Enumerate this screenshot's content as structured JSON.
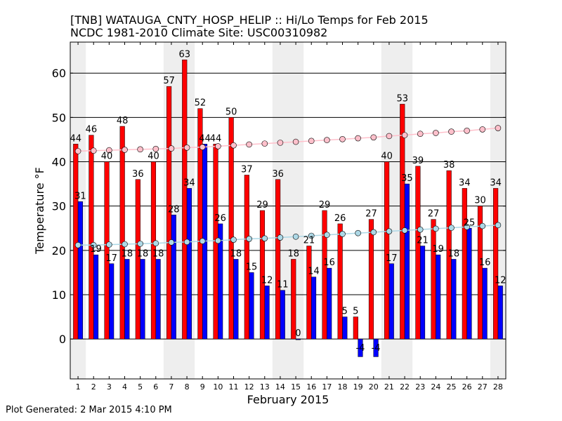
{
  "header": {
    "title_line1": "[TNB] WATAUGA_CNTY_HOSP_HELIP :: Hi/Lo Temps for Feb 2015",
    "title_line2": "NCDC 1981-2010 Climate Site: USC00310982"
  },
  "footer": {
    "generated": "Plot Generated: 2 Mar 2015 4:10 PM"
  },
  "colors": {
    "high_bar": "#ff0000",
    "low_bar": "#0000ff",
    "normal_high": "#ffc0cb",
    "normal_low": "#add8e6",
    "weekend_shade": "#eeeeee"
  },
  "chart_data": {
    "type": "bar",
    "xlabel": "February 2015",
    "ylabel": "Temperature °F",
    "ylim": [
      -9,
      67
    ],
    "yticks": [
      0,
      10,
      20,
      30,
      40,
      50,
      60
    ],
    "grid": "horizontal",
    "categories": [
      "1",
      "2",
      "3",
      "4",
      "5",
      "6",
      "7",
      "8",
      "9",
      "10",
      "11",
      "12",
      "13",
      "14",
      "15",
      "16",
      "17",
      "18",
      "19",
      "20",
      "21",
      "22",
      "23",
      "24",
      "25",
      "26",
      "27",
      "28"
    ],
    "weekend_days": [
      1,
      7,
      8,
      14,
      15,
      21,
      22,
      28
    ],
    "series": [
      {
        "role": "high",
        "values": [
          44,
          46,
          40,
          48,
          36,
          40,
          57,
          63,
          52,
          44,
          50,
          37,
          29,
          36,
          18,
          21,
          29,
          26,
          5,
          27,
          40,
          53,
          39,
          27,
          38,
          34,
          30,
          34
        ]
      },
      {
        "role": "low",
        "values": [
          31,
          19,
          17,
          18,
          18,
          18,
          28,
          34,
          44,
          26,
          18,
          15,
          12,
          11,
          0,
          14,
          16,
          5,
          -4,
          -4,
          17,
          35,
          21,
          19,
          18,
          25,
          16,
          12
        ]
      },
      {
        "role": "normal_high",
        "values": [
          42.4,
          42.5,
          42.6,
          42.7,
          42.8,
          42.9,
          43.0,
          43.2,
          43.3,
          43.5,
          43.7,
          43.9,
          44.1,
          44.3,
          44.5,
          44.7,
          44.9,
          45.1,
          45.3,
          45.5,
          45.8,
          46.0,
          46.3,
          46.5,
          46.8,
          47.0,
          47.3,
          47.6
        ]
      },
      {
        "role": "normal_low",
        "values": [
          21.2,
          21.2,
          21.3,
          21.4,
          21.5,
          21.6,
          21.8,
          21.9,
          22.1,
          22.2,
          22.4,
          22.6,
          22.7,
          22.9,
          23.1,
          23.3,
          23.5,
          23.7,
          23.9,
          24.1,
          24.3,
          24.5,
          24.7,
          24.9,
          25.1,
          25.3,
          25.5,
          25.7
        ]
      }
    ]
  }
}
